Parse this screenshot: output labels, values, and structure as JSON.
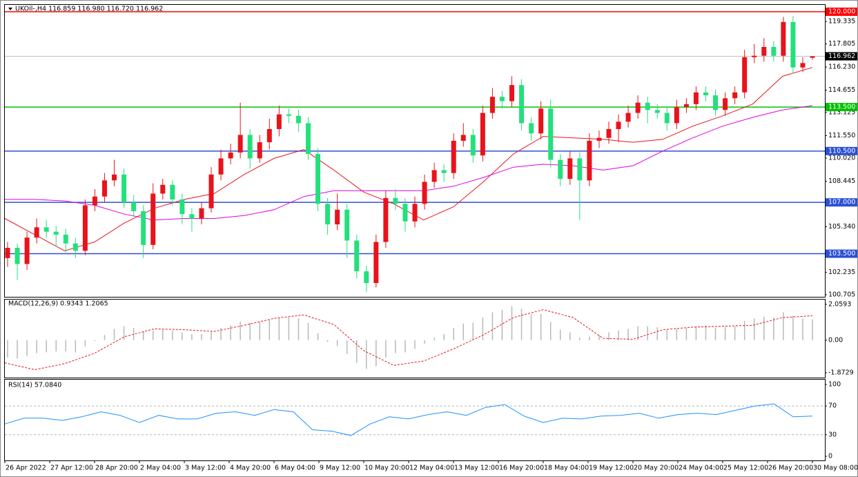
{
  "chart_data": [
    {
      "type": "candlestick",
      "title": "UKOil-,H4  116.859 116.980 116.720 116.962",
      "bull_color": "#e8131b",
      "bear_color": "#23e07c",
      "ylim": [
        100.56,
        120.47
      ],
      "yticks": [
        119.335,
        117.805,
        {
          "value": 116.23,
          "label": "116.230"
        },
        114.655,
        113.125,
        {
          "value": 111.55,
          "label": "111.550"
        },
        {
          "value": 110.02,
          "label": "110.020"
        },
        108.445,
        {
          "value": 105.34,
          "label": "105.340"
        },
        102.235,
        100.705
      ],
      "levels": [
        {
          "value": 120,
          "label": "120.000",
          "color": "#ff0000"
        },
        {
          "value": 113.5,
          "label": "113.500",
          "color": "#00c000"
        },
        {
          "value": 110.5,
          "label": "110.500",
          "color": "#2b4fd6"
        },
        {
          "value": 107,
          "label": "107.000",
          "color": "#2b4fd6"
        },
        {
          "value": 103.5,
          "label": "103.500",
          "color": "#2b4fd6"
        }
      ],
      "last_price": {
        "value": 116.962,
        "label": "116.962"
      },
      "candles": [
        [
          103.2,
          104.3,
          102.6,
          103.9
        ],
        [
          103.9,
          104.2,
          101.7,
          102.8
        ],
        [
          102.8,
          105.0,
          102.4,
          104.6
        ],
        [
          104.6,
          105.9,
          104.2,
          105.3
        ],
        [
          105.3,
          105.8,
          104.6,
          105.0
        ],
        [
          105.0,
          105.4,
          104.0,
          104.8
        ],
        [
          104.8,
          105.2,
          103.6,
          104.2
        ],
        [
          104.2,
          104.6,
          103.2,
          103.7
        ],
        [
          103.7,
          107.2,
          103.4,
          106.8
        ],
        [
          106.8,
          107.9,
          106.4,
          107.4
        ],
        [
          107.4,
          109.0,
          107.0,
          108.5
        ],
        [
          108.5,
          109.9,
          108.1,
          108.9
        ],
        [
          108.9,
          109.3,
          106.6,
          107.0
        ],
        [
          107.0,
          107.5,
          106.0,
          106.4
        ],
        [
          106.4,
          106.8,
          103.2,
          104.1
        ],
        [
          104.1,
          108.3,
          103.8,
          107.6
        ],
        [
          107.6,
          108.6,
          107.2,
          108.2
        ],
        [
          108.2,
          108.5,
          106.8,
          107.2
        ],
        [
          107.2,
          107.6,
          105.5,
          106.2
        ],
        [
          106.2,
          106.6,
          105.0,
          105.9
        ],
        [
          105.9,
          107.0,
          105.5,
          106.6
        ],
        [
          106.6,
          109.4,
          106.3,
          108.9
        ],
        [
          108.9,
          110.6,
          108.5,
          110.0
        ],
        [
          110.0,
          111.0,
          109.6,
          110.4
        ],
        [
          110.4,
          113.8,
          110.0,
          111.6
        ],
        [
          111.6,
          112.0,
          109.3,
          110.0
        ],
        [
          110.0,
          111.6,
          109.7,
          111.1
        ],
        [
          111.1,
          112.7,
          110.6,
          112.0
        ],
        [
          112.0,
          113.6,
          111.5,
          113.0
        ],
        [
          113.0,
          113.4,
          112.4,
          112.9
        ],
        [
          112.9,
          113.3,
          111.8,
          112.4
        ],
        [
          112.4,
          112.8,
          109.9,
          110.3
        ],
        [
          110.3,
          110.7,
          106.4,
          106.9
        ],
        [
          106.9,
          107.3,
          104.8,
          105.5
        ],
        [
          105.5,
          107.6,
          105.1,
          106.5
        ],
        [
          106.5,
          106.9,
          103.2,
          104.4
        ],
        [
          104.4,
          104.8,
          101.8,
          102.3
        ],
        [
          102.3,
          102.7,
          100.9,
          101.5
        ],
        [
          101.5,
          104.8,
          101.2,
          104.3
        ],
        [
          104.3,
          107.8,
          103.9,
          107.3
        ],
        [
          107.3,
          107.9,
          106.5,
          106.9
        ],
        [
          106.9,
          107.3,
          105.0,
          105.7
        ],
        [
          105.7,
          107.4,
          105.3,
          106.9
        ],
        [
          106.9,
          108.9,
          106.5,
          108.4
        ],
        [
          108.4,
          109.7,
          108.0,
          109.2
        ],
        [
          109.2,
          109.6,
          108.4,
          109.0
        ],
        [
          109.0,
          111.7,
          108.6,
          111.2
        ],
        [
          111.2,
          112.4,
          110.8,
          111.6
        ],
        [
          111.6,
          112.0,
          109.7,
          110.2
        ],
        [
          110.2,
          113.6,
          109.8,
          113.1
        ],
        [
          113.1,
          114.8,
          112.7,
          114.2
        ],
        [
          114.2,
          114.6,
          113.4,
          113.9
        ],
        [
          113.9,
          115.6,
          113.5,
          115.0
        ],
        [
          115.0,
          115.4,
          111.9,
          112.4
        ],
        [
          112.4,
          112.8,
          111.2,
          111.7
        ],
        [
          111.7,
          113.9,
          111.3,
          113.4
        ],
        [
          113.4,
          114.0,
          109.4,
          109.9
        ],
        [
          109.9,
          110.3,
          108.1,
          108.6
        ],
        [
          108.6,
          110.5,
          108.2,
          110.0
        ],
        [
          110.0,
          110.4,
          105.8,
          108.5
        ],
        [
          108.5,
          111.7,
          108.1,
          111.2
        ],
        [
          111.2,
          111.9,
          110.7,
          111.4
        ],
        [
          111.4,
          112.5,
          111.0,
          112.0
        ],
        [
          112.0,
          113.0,
          111.1,
          112.5
        ],
        [
          112.5,
          113.6,
          112.1,
          113.1
        ],
        [
          113.1,
          114.3,
          112.7,
          113.8
        ],
        [
          113.8,
          114.2,
          112.4,
          113.3
        ],
        [
          113.3,
          113.7,
          112.7,
          113.1
        ],
        [
          113.1,
          113.5,
          111.9,
          112.4
        ],
        [
          112.4,
          114.0,
          112.0,
          113.5
        ],
        [
          113.5,
          114.1,
          113.1,
          113.7
        ],
        [
          113.7,
          114.9,
          113.3,
          114.5
        ],
        [
          114.5,
          114.9,
          113.9,
          114.3
        ],
        [
          114.3,
          114.7,
          112.9,
          113.3
        ],
        [
          113.3,
          114.5,
          112.9,
          114.1
        ],
        [
          114.1,
          114.9,
          113.7,
          114.5
        ],
        [
          114.5,
          117.4,
          114.1,
          116.9
        ],
        [
          116.9,
          117.8,
          116.5,
          117.0
        ],
        [
          117.0,
          118.2,
          116.6,
          117.6
        ],
        [
          117.6,
          118.0,
          116.6,
          117.0
        ],
        [
          117.0,
          119.65,
          116.6,
          119.3
        ],
        [
          119.3,
          119.7,
          115.8,
          116.2
        ],
        [
          116.2,
          116.9,
          115.9,
          116.5
        ],
        [
          116.859,
          116.98,
          116.72,
          116.962
        ]
      ],
      "series": [
        {
          "color": "#e8131b",
          "values": [
            105.9,
            104.8,
            103.7,
            104.3,
            105.6,
            106.6,
            107.2,
            107.6,
            108.9,
            110.0,
            110.6,
            109.2,
            107.7,
            106.9,
            105.8,
            106.7,
            108.4,
            110.3,
            111.5,
            111.4,
            111.3,
            111.1,
            111.3,
            112.2,
            112.9,
            113.7,
            115.6,
            116.2
          ]
        },
        {
          "color": "#e000e0",
          "values": [
            107.2,
            107.2,
            107.1,
            106.8,
            106.2,
            105.8,
            105.9,
            105.9,
            106.1,
            106.5,
            107.4,
            107.8,
            107.8,
            107.8,
            107.8,
            108.1,
            108.7,
            109.4,
            109.6,
            109.5,
            109.2,
            109.5,
            110.5,
            111.4,
            112.2,
            112.8,
            113.3,
            113.6
          ]
        }
      ],
      "time_labels": [
        "26 Apr 2022",
        "27 Apr 12:00",
        "28 Apr 20:00",
        "2 May 04:00",
        "3 May 12:00",
        "4 May 20:00",
        "6 May 04:00",
        "9 May 12:00",
        "10 May 20:00",
        "12 May 04:00",
        "13 May 12:00",
        "16 May 20:00",
        "18 May 04:00",
        "19 May 12:00",
        "20 May 20:00",
        "24 May 04:00",
        "25 May 12:00",
        "26 May 20:00",
        "30 May 08:00"
      ]
    },
    {
      "type": "macd",
      "title": "MACD(12,26,9) 0.9343 1.2065",
      "ylim": [
        -2.15,
        2.33
      ],
      "yticks": [
        2.0593,
        {
          "value": 0,
          "label": "0.00"
        },
        -1.8729
      ],
      "histogram": {
        "color": "#b8b8b8",
        "values": [
          -1.0,
          -1.05,
          -0.9,
          -0.75,
          -0.7,
          -0.65,
          -0.65,
          -0.7,
          -0.35,
          -0.05,
          0.3,
          0.65,
          0.8,
          0.7,
          0.5,
          0.55,
          0.6,
          0.55,
          0.45,
          0.35,
          0.35,
          0.5,
          0.7,
          0.85,
          1.05,
          1.0,
          1.05,
          1.15,
          1.25,
          1.3,
          1.25,
          1.0,
          0.4,
          -0.1,
          -0.35,
          -0.8,
          -1.3,
          -1.65,
          -1.5,
          -1.0,
          -0.75,
          -0.7,
          -0.5,
          -0.2,
          0.15,
          0.35,
          0.7,
          0.95,
          1.0,
          1.3,
          1.6,
          1.75,
          1.95,
          1.8,
          1.5,
          1.5,
          1.05,
          0.6,
          0.45,
          0.15,
          0.2,
          0.3,
          0.45,
          0.55,
          0.65,
          0.8,
          0.8,
          0.75,
          0.6,
          0.65,
          0.7,
          0.8,
          0.85,
          0.7,
          0.75,
          0.8,
          1.1,
          1.25,
          1.35,
          1.3,
          1.6,
          1.4,
          1.25,
          1.2
        ]
      },
      "signal": {
        "color": "#e8131b",
        "values": [
          -1.3,
          -1.7,
          -1.35,
          -0.75,
          0.2,
          0.65,
          0.6,
          0.5,
          0.85,
          1.25,
          1.45,
          0.9,
          -0.6,
          -1.45,
          -1.2,
          -0.5,
          0.3,
          1.3,
          1.75,
          1.3,
          0.1,
          0.05,
          0.6,
          0.75,
          0.8,
          0.85,
          1.3,
          1.4
        ]
      }
    },
    {
      "type": "line",
      "title": "RSI(14) 57.0840",
      "color": "#1e90ff",
      "ylim": [
        -5.8,
        106.7
      ],
      "yticks": [
        100,
        70,
        30,
        0
      ],
      "levels": [
        70,
        30
      ],
      "values": [
        45,
        53,
        53,
        50,
        55,
        62,
        57,
        47,
        57,
        52,
        52,
        60,
        62,
        57,
        65,
        62,
        37,
        35,
        29,
        45,
        55,
        52,
        58,
        62,
        57,
        68,
        72,
        56,
        47,
        53,
        52,
        56,
        57,
        60,
        53,
        58,
        60,
        58,
        64,
        70,
        73,
        55,
        56
      ]
    }
  ]
}
